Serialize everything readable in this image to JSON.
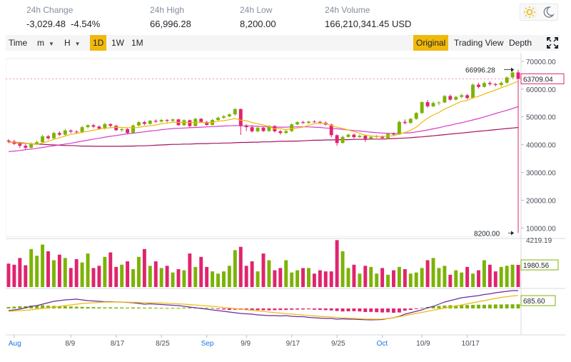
{
  "stats": {
    "change_label": "24h Change",
    "change_value": "-3,029.48",
    "change_pct": "-4.54%",
    "high_label": "24h High",
    "high_value": "66,996.28",
    "low_label": "24h Low",
    "low_value": "8,200.00",
    "volume_label": "24h Volume",
    "volume_value": "166,210,341.45 USD"
  },
  "theme": {
    "light_icon": "sun-icon",
    "dark_icon": "moon-icon"
  },
  "toolbar": {
    "time": "Time",
    "minute": "m",
    "hour": "H",
    "intervals": [
      "1D",
      "1W",
      "1M"
    ],
    "active_interval": "1D",
    "views": [
      "Original",
      "Trading View",
      "Depth"
    ],
    "active_view": "Original",
    "expand_icon": "expand-icon"
  },
  "colors": {
    "up": "#7cb305",
    "down": "#e0246e",
    "ma7": "#f0b90b",
    "ma25": "#d63dcc",
    "ma99": "#a5135e",
    "macd_line": "#6a2ba0",
    "signal_line": "#f0b90b",
    "accent": "#f0b90b"
  },
  "chart_data": {
    "type": "candlestick",
    "price_axis": {
      "ticks": [
        "70000.00",
        "60000.00",
        "50000.00",
        "40000.00",
        "30000.00",
        "20000.00",
        "10000.00"
      ],
      "ylim": [
        7000,
        71000
      ]
    },
    "x_labels": [
      "Aug",
      "8/9",
      "8/17",
      "8/25",
      "Sep",
      "9/9",
      "9/17",
      "9/25",
      "Oct",
      "10/9",
      "10/17"
    ],
    "annotations": {
      "high": "66996.28",
      "low": "8200.00",
      "last": "63709.04"
    },
    "candles": [
      [
        41500,
        41200,
        42000,
        40500
      ],
      [
        41200,
        40300,
        41800,
        39900
      ],
      [
        40300,
        39600,
        41000,
        38800
      ],
      [
        39600,
        38900,
        40200,
        38200
      ],
      [
        38900,
        40200,
        40800,
        38500
      ],
      [
        40200,
        40900,
        41500,
        39800
      ],
      [
        40900,
        43000,
        43600,
        40500
      ],
      [
        43000,
        42300,
        43500,
        41800
      ],
      [
        42300,
        44200,
        44700,
        42000
      ],
      [
        44200,
        43600,
        44800,
        43100
      ],
      [
        43600,
        45100,
        45700,
        43300
      ],
      [
        45100,
        44700,
        45500,
        44100
      ],
      [
        44700,
        44500,
        45200,
        43900
      ],
      [
        44500,
        46300,
        46800,
        44000
      ],
      [
        46300,
        47000,
        47400,
        45800
      ],
      [
        47000,
        46500,
        47500,
        45900
      ],
      [
        46500,
        45800,
        47000,
        45300
      ],
      [
        45800,
        47400,
        47900,
        45400
      ],
      [
        47400,
        46800,
        47700,
        46200
      ],
      [
        46800,
        45200,
        47200,
        44900
      ],
      [
        45200,
        45600,
        46000,
        44600
      ],
      [
        45600,
        44200,
        45900,
        43800
      ],
      [
        44200,
        46900,
        47300,
        44000
      ],
      [
        46900,
        48100,
        48500,
        46500
      ],
      [
        48100,
        47500,
        48600,
        47000
      ],
      [
        47500,
        48600,
        48900,
        47200
      ],
      [
        48600,
        48300,
        49100,
        47800
      ],
      [
        48300,
        48900,
        49300,
        47900
      ],
      [
        48900,
        48600,
        49200,
        48000
      ],
      [
        48600,
        49100,
        49400,
        48200
      ],
      [
        49100,
        47000,
        49300,
        46800
      ],
      [
        47000,
        48800,
        49200,
        46700
      ],
      [
        48800,
        46700,
        49000,
        46200
      ],
      [
        46700,
        49300,
        49700,
        46500
      ],
      [
        49300,
        48200,
        49600,
        47900
      ],
      [
        48200,
        47100,
        48600,
        46800
      ],
      [
        47100,
        48900,
        49300,
        46900
      ],
      [
        48900,
        49700,
        50100,
        48500
      ],
      [
        49700,
        50200,
        50700,
        49300
      ],
      [
        50200,
        50900,
        51300,
        49900
      ],
      [
        50900,
        52800,
        53200,
        50500
      ],
      [
        52800,
        46800,
        53000,
        43500
      ],
      [
        46800,
        46300,
        47400,
        44900
      ],
      [
        46300,
        44800,
        47000,
        44400
      ],
      [
        44800,
        46100,
        46600,
        44400
      ],
      [
        46100,
        44900,
        46500,
        44600
      ],
      [
        44900,
        46700,
        47100,
        44600
      ],
      [
        46700,
        44800,
        47000,
        44400
      ],
      [
        44800,
        44200,
        45300,
        43600
      ],
      [
        44200,
        44900,
        45400,
        43900
      ],
      [
        44900,
        47300,
        47700,
        44500
      ],
      [
        47300,
        48100,
        48400,
        46900
      ],
      [
        48100,
        47800,
        48600,
        47500
      ],
      [
        47800,
        48300,
        48600,
        47500
      ],
      [
        48300,
        48200,
        48800,
        47900
      ],
      [
        48200,
        47900,
        48600,
        47400
      ],
      [
        47900,
        47200,
        48400,
        46900
      ],
      [
        47200,
        43400,
        47600,
        42600
      ],
      [
        43400,
        40600,
        43800,
        39600
      ],
      [
        40600,
        42800,
        43300,
        40400
      ],
      [
        42800,
        43600,
        44000,
        42500
      ],
      [
        43600,
        42700,
        44000,
        42200
      ],
      [
        42700,
        43200,
        43700,
        42400
      ],
      [
        43200,
        42100,
        43600,
        41000
      ],
      [
        42100,
        42800,
        43300,
        41700
      ],
      [
        42800,
        43000,
        43500,
        42400
      ],
      [
        43000,
        42400,
        43300,
        41900
      ],
      [
        42400,
        43900,
        44300,
        42000
      ],
      [
        43900,
        43700,
        44400,
        43300
      ],
      [
        43700,
        48200,
        48600,
        43500
      ],
      [
        48200,
        47800,
        49100,
        47300
      ],
      [
        47800,
        49300,
        49600,
        47600
      ],
      [
        49300,
        51400,
        51800,
        48900
      ],
      [
        51400,
        55300,
        55700,
        51000
      ],
      [
        55300,
        53800,
        56100,
        53300
      ],
      [
        53800,
        55000,
        55600,
        53500
      ],
      [
        55000,
        55200,
        55600,
        54200
      ],
      [
        55200,
        57500,
        57900,
        54900
      ],
      [
        57500,
        56200,
        58100,
        55800
      ],
      [
        56200,
        57200,
        57600,
        55900
      ],
      [
        57200,
        57800,
        58400,
        56700
      ],
      [
        57800,
        56800,
        58300,
        56300
      ],
      [
        56800,
        61600,
        62000,
        56500
      ],
      [
        61600,
        60800,
        62300,
        60200
      ],
      [
        60800,
        62200,
        62700,
        60500
      ],
      [
        62200,
        61800,
        62800,
        61200
      ],
      [
        61800,
        61500,
        62200,
        61000
      ],
      [
        61500,
        62300,
        62800,
        60800
      ],
      [
        62300,
        64200,
        64600,
        61900
      ],
      [
        64200,
        66000,
        66600,
        63700
      ],
      [
        66000,
        63709,
        66996,
        8200
      ]
    ],
    "ma7": [
      40800,
      40900,
      40800,
      40600,
      40300,
      40100,
      40600,
      41200,
      41900,
      42500,
      43100,
      43700,
      44000,
      44500,
      44800,
      45200,
      45600,
      45900,
      46100,
      46300,
      46200,
      46100,
      46100,
      46200,
      46600,
      46800,
      47100,
      47500,
      47800,
      48100,
      48000,
      48100,
      47900,
      48000,
      48000,
      47900,
      48000,
      48500,
      48600,
      49000,
      49400,
      48800,
      48600,
      48000,
      47500,
      47100,
      46500,
      45700,
      45800,
      45400,
      45700,
      46000,
      46300,
      47000,
      47500,
      47800,
      47600,
      46900,
      46300,
      45800,
      45300,
      44700,
      44100,
      43400,
      43100,
      43000,
      42900,
      43200,
      43200,
      43800,
      44400,
      45200,
      46300,
      48100,
      49500,
      50700,
      51600,
      52800,
      53700,
      54700,
      55600,
      55900,
      56900,
      57400,
      58200,
      59000,
      59700,
      60500,
      61200,
      62000,
      62800
    ],
    "ma25": [
      37500,
      37700,
      37900,
      38200,
      38400,
      38700,
      39000,
      39300,
      39600,
      39900,
      40200,
      40500,
      40900,
      41300,
      41600,
      42000,
      42300,
      42700,
      43000,
      43300,
      43600,
      43900,
      44100,
      44400,
      44600,
      44900,
      45100,
      45400,
      45600,
      45800,
      45900,
      46000,
      46100,
      46200,
      46300,
      46400,
      46500,
      46600,
      46700,
      46800,
      46900,
      46800,
      46800,
      46700,
      46600,
      46500,
      46400,
      46300,
      46300,
      46300,
      46400,
      46400,
      46400,
      46400,
      46300,
      46200,
      46000,
      45900,
      45700,
      45500,
      45300,
      45100,
      44900,
      44700,
      44500,
      44300,
      44200,
      44100,
      44000,
      44100,
      44200,
      44300,
      44600,
      44900,
      45300,
      45700,
      46100,
      46600,
      47000,
      47500,
      47900,
      48400,
      48900,
      49400,
      50000,
      50600,
      51200,
      51800,
      52400,
      53000,
      53700
    ],
    "ma99": [
      41000,
      40800,
      40600,
      40500,
      40300,
      40200,
      40100,
      40000,
      39900,
      39800,
      39700,
      39700,
      39600,
      39500,
      39500,
      39400,
      39400,
      39400,
      39400,
      39400,
      39400,
      39500,
      39500,
      39600,
      39600,
      39700,
      39800,
      39900,
      40000,
      40100,
      40100,
      40200,
      40200,
      40300,
      40400,
      40400,
      40500,
      40500,
      40600,
      40600,
      40700,
      40800,
      40800,
      40900,
      40900,
      41000,
      41000,
      41100,
      41200,
      41200,
      41300,
      41300,
      41400,
      41500,
      41600,
      41600,
      41700,
      41700,
      41800,
      41800,
      41800,
      41900,
      41900,
      41900,
      42000,
      42000,
      42000,
      42100,
      42200,
      42300,
      42400,
      42500,
      42700,
      42800,
      43000,
      43200,
      43400,
      43600,
      43800,
      44000,
      44200,
      44400,
      44600,
      44800,
      45000,
      45200,
      45400,
      45600,
      45800,
      46000,
      46200
    ],
    "volume_axis": {
      "top": "4219.19",
      "last": "1980.56"
    },
    "volume": [
      2100,
      2000,
      2600,
      1950,
      3400,
      2800,
      3800,
      3200,
      2400,
      2900,
      2600,
      1700,
      2500,
      2200,
      3000,
      1700,
      1900,
      2700,
      3100,
      1800,
      2000,
      2300,
      1600,
      2700,
      3400,
      1900,
      2300,
      1700,
      1900,
      1300,
      1600,
      1500,
      3000,
      1800,
      2700,
      1800,
      1400,
      1200,
      1400,
      1900,
      3300,
      3600,
      1900,
      2300,
      1400,
      3000,
      2400,
      1500,
      1700,
      2400,
      1300,
      1500,
      1700,
      1700,
      1200,
      1500,
      1400,
      1400,
      4200,
      3200,
      1700,
      2000,
      1200,
      1900,
      1800,
      1200,
      1700,
      1100,
      1500,
      1800,
      1600,
      1200,
      1300,
      1700,
      2400,
      2600,
      1700,
      1900,
      1100,
      1500,
      1300,
      1800,
      1200,
      1500,
      2400,
      2000,
      1400,
      1800,
      1900,
      2000,
      1980
    ],
    "macd_axis": {
      "last": "685.60"
    },
    "macd_hist": [
      200,
      250,
      300,
      320,
      400,
      420,
      460,
      380,
      360,
      340,
      320,
      280,
      240,
      220,
      200,
      180,
      160,
      140,
      160,
      150,
      140,
      120,
      140,
      130,
      110,
      120,
      100,
      80,
      70,
      90,
      100,
      110,
      120,
      100,
      110,
      100,
      80,
      -100,
      -150,
      -200,
      -180,
      -190,
      -220,
      -250,
      -230,
      -250,
      -260,
      -240,
      -220,
      -210,
      -180,
      -160,
      -140,
      -120,
      -180,
      -200,
      -240,
      -280,
      -350,
      -420,
      -400,
      -380,
      -420,
      -500,
      -480,
      -520,
      -560,
      -540,
      -600,
      -560,
      -300,
      -200,
      -100,
      100,
      200,
      300,
      350,
      400,
      450,
      420,
      460,
      480,
      500,
      520,
      520,
      540,
      560,
      560,
      580,
      580,
      590
    ],
    "macd_line": [
      -300,
      -200,
      -100,
      100,
      300,
      400,
      600,
      800,
      1000,
      1100,
      1200,
      1250,
      1300,
      1200,
      1100,
      1050,
      1000,
      950,
      950,
      900,
      900,
      850,
      800,
      700,
      600,
      650,
      600,
      550,
      500,
      450,
      400,
      300,
      200,
      100,
      0,
      -100,
      -200,
      -300,
      -400,
      -500,
      -600,
      -700,
      -750,
      -800,
      -900,
      -950,
      -1000,
      -1000,
      -1050,
      -1000,
      -1100,
      -1150,
      -1150,
      -1250,
      -1300,
      -1350,
      -1400,
      -1400,
      -1500,
      -1450,
      -1500,
      -1500,
      -1550,
      -1580,
      -1600,
      -1580,
      -1550,
      -1400,
      -1300,
      -1100,
      -800,
      -600,
      -400,
      -200,
      100,
      300,
      600,
      900,
      1100,
      1300,
      1500,
      1600,
      1700,
      1800,
      1950,
      2050,
      2200,
      2300,
      2400,
      2500,
      2500
    ],
    "signal_line": [
      -400,
      -350,
      -300,
      -250,
      -200,
      -100,
      0,
      100,
      200,
      300,
      400,
      500,
      600,
      700,
      750,
      800,
      850,
      900,
      900,
      900,
      900,
      880,
      860,
      840,
      820,
      800,
      780,
      760,
      720,
      680,
      640,
      600,
      540,
      480,
      420,
      360,
      300,
      220,
      140,
      60,
      -20,
      -100,
      -180,
      -260,
      -340,
      -420,
      -500,
      -580,
      -650,
      -720,
      -790,
      -860,
      -920,
      -980,
      -1040,
      -1100,
      -1150,
      -1200,
      -1260,
      -1320,
      -1360,
      -1400,
      -1440,
      -1480,
      -1500,
      -1500,
      -1480,
      -1400,
      -1300,
      -1150,
      -1000,
      -850,
      -700,
      -550,
      -400,
      -250,
      -100,
      50,
      200,
      350,
      500,
      650,
      800,
      950,
      1100,
      1250,
      1400,
      1550,
      1650,
      1750,
      1800
    ]
  }
}
